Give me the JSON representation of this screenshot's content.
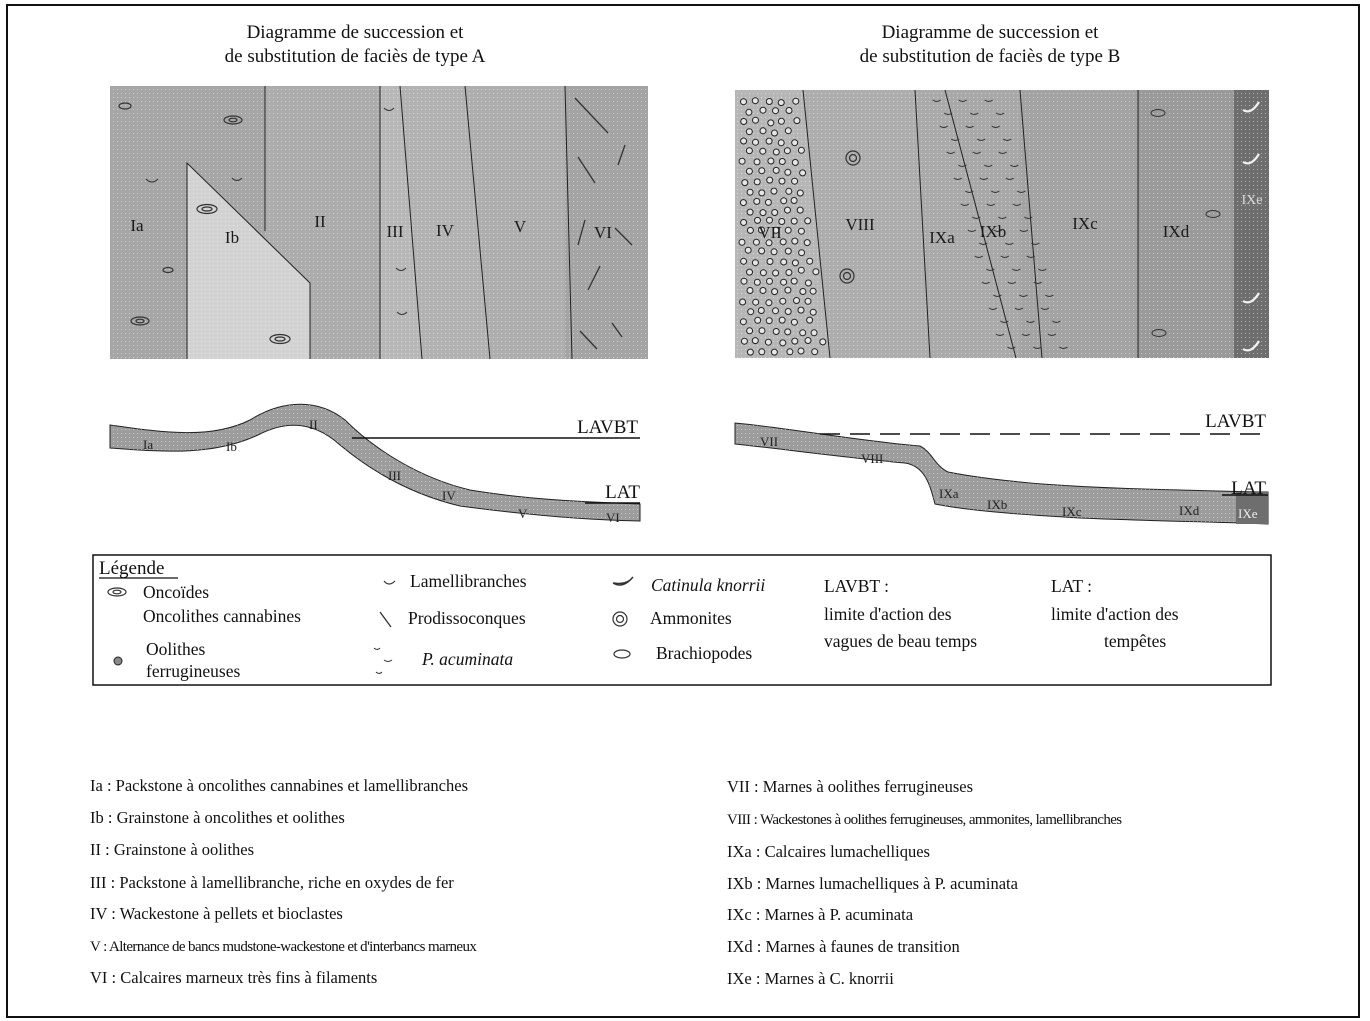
{
  "titles": {
    "a_line1": "Diagramme de succession et",
    "a_line2": "de substitution de faciès de type A",
    "b_line1": "Diagramme de succession et",
    "b_line2": "de substitution de faciès de type B"
  },
  "block_a_labels": [
    "Ia",
    "Ib",
    "II",
    "III",
    "IV",
    "V",
    "VI"
  ],
  "block_b_labels": [
    "VII",
    "VIII",
    "IXa",
    "IXb",
    "IXc",
    "IXd",
    "IXe"
  ],
  "profile_a": {
    "labels": [
      "Ia",
      "Ib",
      "II",
      "III",
      "IV",
      "V",
      "VI"
    ],
    "lavbt": "LAVBT",
    "lat": "LAT"
  },
  "profile_b": {
    "labels": [
      "VII",
      "VIII",
      "IXa",
      "IXb",
      "IXc",
      "IXd",
      "IXe"
    ],
    "lavbt": "LAVBT",
    "lat": "LAT"
  },
  "legend": {
    "heading": "Légende",
    "oncoides_1": "Oncoïdes",
    "oncoides_2": "Oncolithes cannabines",
    "oolithes_1": "Oolithes",
    "oolithes_2": "ferrugineuses",
    "lamellibranches": "Lamellibranches",
    "prodissoconques": "Prodissoconques",
    "p_acuminata": "P. acuminata",
    "catinula": "Catinula knorrii",
    "ammonites": "Ammonites",
    "brachiopodes": "Brachiopodes",
    "lavbt_title": "LAVBT :",
    "lavbt_line1": "limite d'action des",
    "lavbt_line2": "vagues de beau temps",
    "lat_title": "LAT :",
    "lat_line1": "limite d'action des",
    "lat_line2": "tempêtes"
  },
  "descriptions_left": [
    "Ia : Packstone à oncolithes cannabines et lamellibranches",
    "Ib : Grainstone à oncolithes et oolithes",
    "II : Grainstone à oolithes",
    "III : Packstone à lamellibranche, riche en oxydes de fer",
    "IV : Wackestone à pellets et bioclastes",
    "V : Alternance de bancs mudstone-wackestone et d'interbancs marneux",
    "VI : Calcaires marneux très fins à filaments"
  ],
  "descriptions_right": [
    "VII : Marnes à oolithes ferrugineuses",
    "VIII : Wackestones à oolithes ferrugineuses, ammonites, lamellibranches",
    "IXa : Calcaires lumachelliques",
    "IXb : Marnes lumachelliques à P. acuminata",
    "IXc : Marnes à P. acuminata",
    "IXd : Marnes à faunes de transition",
    "IXe : Marnes à C. knorrii"
  ],
  "colors": {
    "block_light": "#cfcfcf",
    "block_mid": "#b4b4b4",
    "block_dark": "#9c9c9c",
    "block_darkest": "#6e6e6e",
    "outline": "#111111"
  }
}
